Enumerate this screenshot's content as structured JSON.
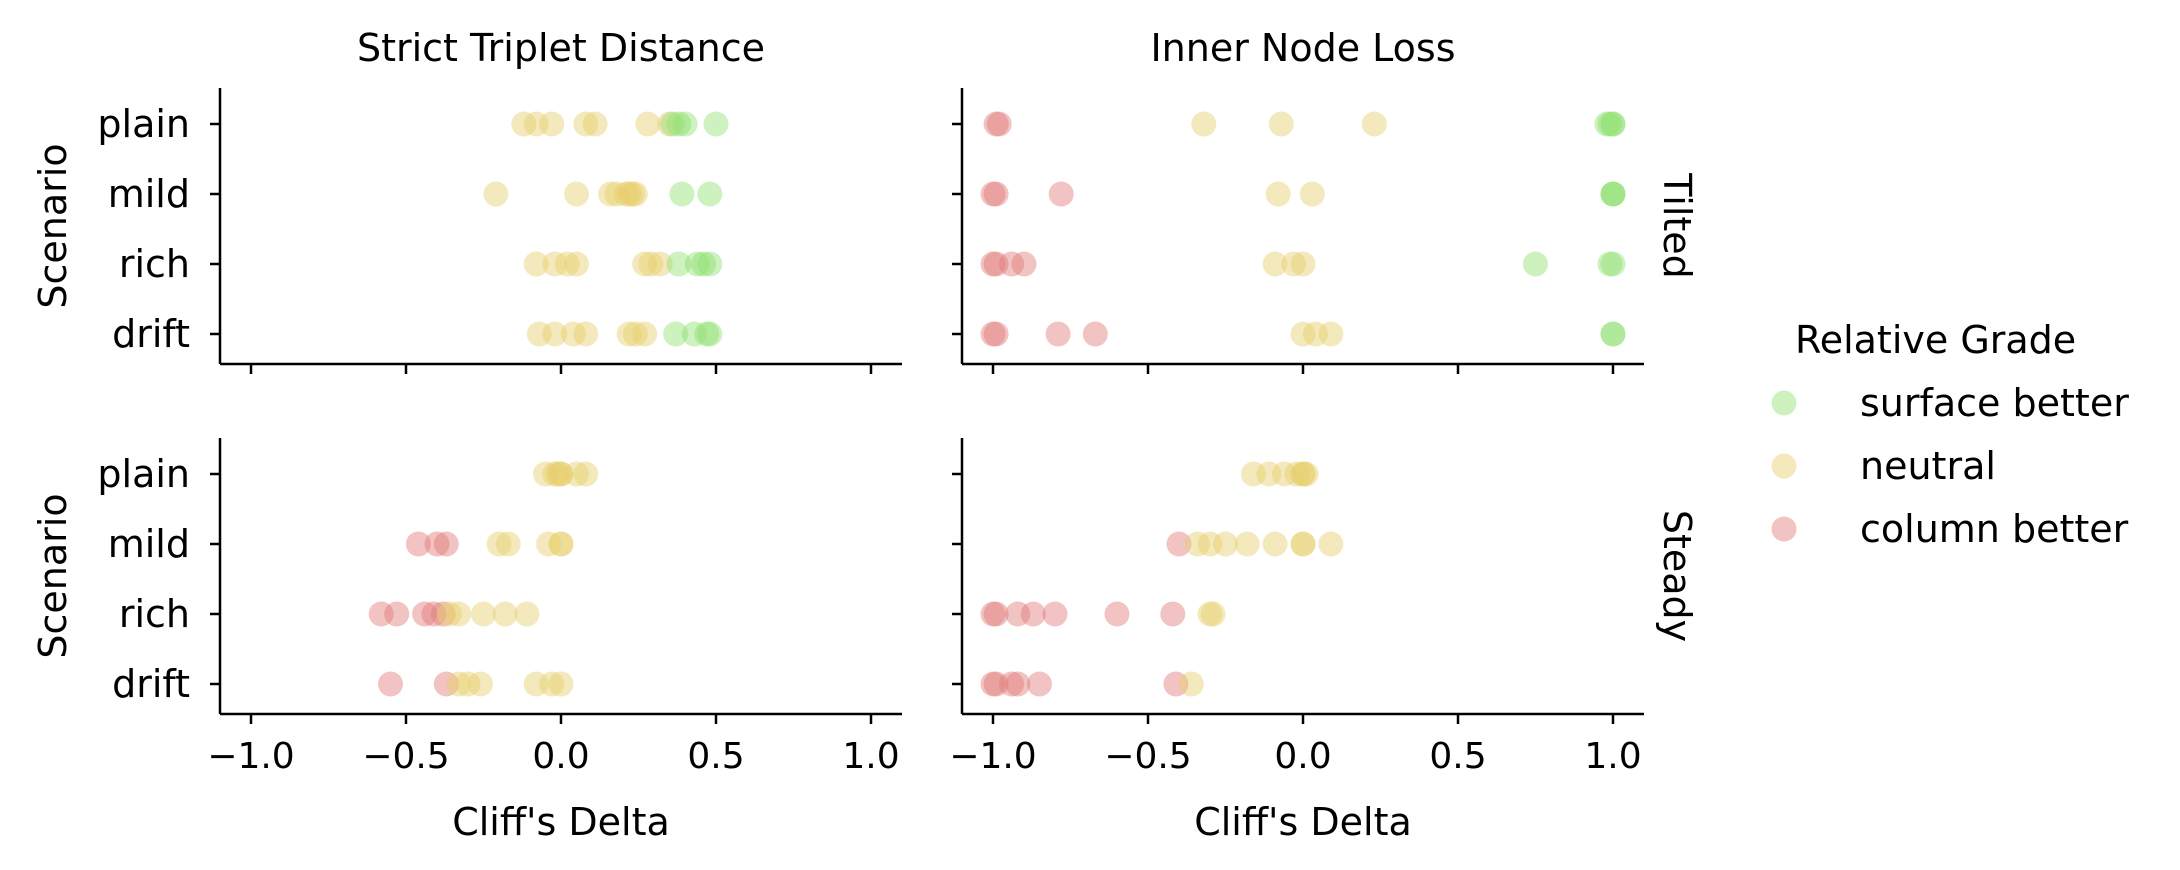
{
  "chart_data": {
    "type": "scatter",
    "x_label": "Cliff's Delta",
    "y_label": "Scenario",
    "xlim": [
      -1.1,
      1.1
    ],
    "x_ticks": [
      -1.0,
      -0.5,
      0.0,
      0.5,
      1.0
    ],
    "x_tick_labels": [
      "−1.0",
      "−0.5",
      "0.0",
      "0.5",
      "1.0"
    ],
    "categories": [
      "plain",
      "mild",
      "rich",
      "drift"
    ],
    "columns": [
      "Strict Triplet Distance",
      "Inner Node Loss"
    ],
    "rows": [
      "Tilted",
      "Steady"
    ],
    "grid": false,
    "legend": {
      "title": "Relative Grade",
      "position": "right",
      "entries": [
        {
          "label": "surface better",
          "color": "#90e070"
        },
        {
          "label": "neutral",
          "color": "#e6cf6a"
        },
        {
          "label": "column better",
          "color": "#e07a78"
        }
      ]
    },
    "panels": [
      {
        "row": "Tilted",
        "column": "Strict Triplet Distance",
        "points": {
          "plain": [
            [
              -0.12,
              "neutral"
            ],
            [
              -0.08,
              "neutral"
            ],
            [
              -0.03,
              "neutral"
            ],
            [
              0.08,
              "neutral"
            ],
            [
              0.11,
              "neutral"
            ],
            [
              0.28,
              "neutral"
            ],
            [
              0.35,
              "neutral"
            ],
            [
              0.36,
              "surface better"
            ],
            [
              0.38,
              "surface better"
            ],
            [
              0.4,
              "surface better"
            ],
            [
              0.5,
              "surface better"
            ]
          ],
          "mild": [
            [
              -0.21,
              "neutral"
            ],
            [
              0.05,
              "neutral"
            ],
            [
              0.16,
              "neutral"
            ],
            [
              0.18,
              "neutral"
            ],
            [
              0.21,
              "neutral"
            ],
            [
              0.22,
              "neutral"
            ],
            [
              0.23,
              "neutral"
            ],
            [
              0.24,
              "neutral"
            ],
            [
              0.39,
              "surface better"
            ],
            [
              0.48,
              "surface better"
            ]
          ],
          "rich": [
            [
              -0.08,
              "neutral"
            ],
            [
              -0.02,
              "neutral"
            ],
            [
              0.02,
              "neutral"
            ],
            [
              0.05,
              "neutral"
            ],
            [
              0.27,
              "neutral"
            ],
            [
              0.29,
              "neutral"
            ],
            [
              0.32,
              "neutral"
            ],
            [
              0.38,
              "surface better"
            ],
            [
              0.44,
              "surface better"
            ],
            [
              0.46,
              "surface better"
            ],
            [
              0.48,
              "surface better"
            ]
          ],
          "drift": [
            [
              -0.07,
              "neutral"
            ],
            [
              -0.02,
              "neutral"
            ],
            [
              0.04,
              "neutral"
            ],
            [
              0.08,
              "neutral"
            ],
            [
              0.22,
              "neutral"
            ],
            [
              0.24,
              "neutral"
            ],
            [
              0.27,
              "neutral"
            ],
            [
              0.37,
              "surface better"
            ],
            [
              0.43,
              "surface better"
            ],
            [
              0.47,
              "surface better"
            ],
            [
              0.48,
              "surface better"
            ]
          ]
        }
      },
      {
        "row": "Tilted",
        "column": "Inner Node Loss",
        "points": {
          "plain": [
            [
              -0.99,
              "column better"
            ],
            [
              -0.98,
              "column better"
            ],
            [
              -0.32,
              "neutral"
            ],
            [
              -0.07,
              "neutral"
            ],
            [
              0.23,
              "neutral"
            ],
            [
              0.98,
              "surface better"
            ],
            [
              0.99,
              "surface better"
            ],
            [
              1.0,
              "surface better"
            ],
            [
              1.0,
              "surface better"
            ]
          ],
          "mild": [
            [
              -1.0,
              "column better"
            ],
            [
              -0.99,
              "column better"
            ],
            [
              -0.78,
              "column better"
            ],
            [
              -0.08,
              "neutral"
            ],
            [
              0.03,
              "neutral"
            ],
            [
              1.0,
              "surface better"
            ],
            [
              1.0,
              "surface better"
            ],
            [
              1.0,
              "surface better"
            ]
          ],
          "rich": [
            [
              -1.0,
              "column better"
            ],
            [
              -0.99,
              "column better"
            ],
            [
              -0.94,
              "column better"
            ],
            [
              -0.9,
              "column better"
            ],
            [
              -0.09,
              "neutral"
            ],
            [
              -0.03,
              "neutral"
            ],
            [
              0.0,
              "neutral"
            ],
            [
              0.75,
              "surface better"
            ],
            [
              0.99,
              "surface better"
            ],
            [
              1.0,
              "surface better"
            ]
          ],
          "drift": [
            [
              -1.0,
              "column better"
            ],
            [
              -0.99,
              "column better"
            ],
            [
              -0.79,
              "column better"
            ],
            [
              -0.67,
              "column better"
            ],
            [
              0.0,
              "neutral"
            ],
            [
              0.04,
              "neutral"
            ],
            [
              0.09,
              "neutral"
            ],
            [
              1.0,
              "surface better"
            ],
            [
              1.0,
              "surface better"
            ]
          ]
        }
      },
      {
        "row": "Steady",
        "column": "Strict Triplet Distance",
        "points": {
          "plain": [
            [
              -0.05,
              "neutral"
            ],
            [
              -0.02,
              "neutral"
            ],
            [
              -0.01,
              "neutral"
            ],
            [
              0.0,
              "neutral"
            ],
            [
              0.0,
              "neutral"
            ],
            [
              0.05,
              "neutral"
            ],
            [
              0.08,
              "neutral"
            ]
          ],
          "mild": [
            [
              -0.46,
              "column better"
            ],
            [
              -0.4,
              "column better"
            ],
            [
              -0.37,
              "column better"
            ],
            [
              -0.2,
              "neutral"
            ],
            [
              -0.17,
              "neutral"
            ],
            [
              -0.04,
              "neutral"
            ],
            [
              0.0,
              "neutral"
            ],
            [
              0.0,
              "neutral"
            ]
          ],
          "rich": [
            [
              -0.58,
              "column better"
            ],
            [
              -0.53,
              "column better"
            ],
            [
              -0.44,
              "column better"
            ],
            [
              -0.41,
              "column better"
            ],
            [
              -0.38,
              "column better"
            ],
            [
              -0.36,
              "neutral"
            ],
            [
              -0.33,
              "neutral"
            ],
            [
              -0.25,
              "neutral"
            ],
            [
              -0.18,
              "neutral"
            ],
            [
              -0.11,
              "neutral"
            ]
          ],
          "drift": [
            [
              -0.55,
              "column better"
            ],
            [
              -0.37,
              "column better"
            ],
            [
              -0.33,
              "neutral"
            ],
            [
              -0.3,
              "neutral"
            ],
            [
              -0.26,
              "neutral"
            ],
            [
              -0.08,
              "neutral"
            ],
            [
              -0.03,
              "neutral"
            ],
            [
              0.0,
              "neutral"
            ]
          ]
        }
      },
      {
        "row": "Steady",
        "column": "Inner Node Loss",
        "points": {
          "plain": [
            [
              -0.16,
              "neutral"
            ],
            [
              -0.11,
              "neutral"
            ],
            [
              -0.06,
              "neutral"
            ],
            [
              -0.02,
              "neutral"
            ],
            [
              0.0,
              "neutral"
            ],
            [
              0.0,
              "neutral"
            ],
            [
              0.01,
              "neutral"
            ]
          ],
          "mild": [
            [
              -0.4,
              "column better"
            ],
            [
              -0.34,
              "neutral"
            ],
            [
              -0.3,
              "neutral"
            ],
            [
              -0.25,
              "neutral"
            ],
            [
              -0.18,
              "neutral"
            ],
            [
              -0.09,
              "neutral"
            ],
            [
              0.0,
              "neutral"
            ],
            [
              0.0,
              "neutral"
            ],
            [
              0.09,
              "neutral"
            ]
          ],
          "rich": [
            [
              -1.0,
              "column better"
            ],
            [
              -0.99,
              "column better"
            ],
            [
              -0.92,
              "column better"
            ],
            [
              -0.87,
              "column better"
            ],
            [
              -0.8,
              "column better"
            ],
            [
              -0.6,
              "column better"
            ],
            [
              -0.42,
              "column better"
            ],
            [
              -0.3,
              "neutral"
            ],
            [
              -0.29,
              "neutral"
            ]
          ],
          "drift": [
            [
              -1.0,
              "column better"
            ],
            [
              -0.99,
              "column better"
            ],
            [
              -0.94,
              "column better"
            ],
            [
              -0.92,
              "column better"
            ],
            [
              -0.85,
              "column better"
            ],
            [
              -0.41,
              "column better"
            ],
            [
              -0.36,
              "neutral"
            ]
          ]
        }
      }
    ]
  }
}
